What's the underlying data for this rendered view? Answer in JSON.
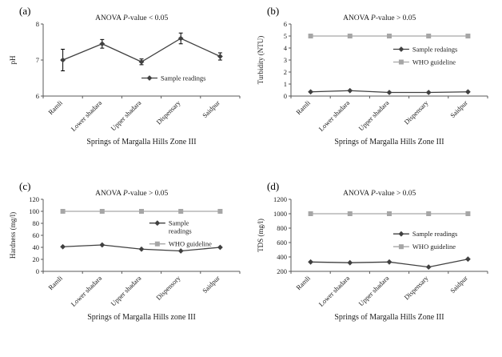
{
  "page": {
    "background": "#ffffff"
  },
  "colors": {
    "sample": "#404040",
    "who": "#a6a6a6",
    "axis": "#595959",
    "text": "#1a1a1a",
    "error": "#000000"
  },
  "chart_data": [
    {
      "panel_label": "(a)",
      "type": "line",
      "annotation": "ANOVA P-value < 0.05",
      "ylabel": "pH",
      "xlabel": "Springs of Margalla Hills Zone III",
      "ylim": [
        6,
        8
      ],
      "yticks": [
        6,
        7,
        8
      ],
      "categories": [
        "Ramli",
        "Lower shadara",
        "Upper shadara",
        "Dispensary",
        "Saidpur"
      ],
      "series": [
        {
          "name": "Sample readings",
          "marker": "diamond",
          "color": "#404040",
          "values": [
            7.0,
            7.45,
            6.95,
            7.6,
            7.1
          ],
          "errors": [
            0.3,
            0.12,
            0.08,
            0.15,
            0.1
          ]
        }
      ],
      "legend": {
        "x": 0.5,
        "y": 0.75
      },
      "legend_position": "inside-right",
      "grid": false
    },
    {
      "panel_label": "(b)",
      "type": "line",
      "annotation": "ANOVA P-value > 0.05",
      "ylabel": "Turbidity (NTU)",
      "xlabel": "Springs of Margalla Hills Zone III",
      "ylim": [
        0,
        6
      ],
      "yticks": [
        0,
        1,
        2,
        3,
        4,
        5,
        6
      ],
      "categories": [
        "Ramli",
        "Lower shadara",
        "Upper shadara",
        "Dispensary",
        "Saidpur"
      ],
      "series": [
        {
          "name": "Sample redaings",
          "marker": "diamond",
          "color": "#404040",
          "values": [
            0.35,
            0.45,
            0.3,
            0.3,
            0.35
          ]
        },
        {
          "name": "WHO guideline",
          "marker": "square",
          "color": "#a6a6a6",
          "values": [
            5,
            5,
            5,
            5,
            5
          ]
        }
      ],
      "legend": {
        "x": 0.52,
        "y": 0.35
      },
      "legend_position": "inside-right",
      "grid": false
    },
    {
      "panel_label": "(c)",
      "type": "line",
      "annotation": "ANOVA P-value > 0.05",
      "ylabel": "Hardness (mg/l)",
      "xlabel": "Springs of Margalla Hills zone III",
      "ylim": [
        0,
        120
      ],
      "yticks": [
        0,
        20,
        40,
        60,
        80,
        100,
        120
      ],
      "categories": [
        "Ramli",
        "Lower shadara",
        "Upper shadara",
        "Dispensory",
        "Saidpur"
      ],
      "series": [
        {
          "name": "Sample readings",
          "legend_lines": [
            "Sample",
            "readings"
          ],
          "marker": "diamond",
          "color": "#404040",
          "values": [
            41,
            44,
            37,
            34,
            40
          ]
        },
        {
          "name": "WHO guideline",
          "marker": "square",
          "color": "#a6a6a6",
          "values": [
            100,
            100,
            100,
            100,
            100
          ]
        }
      ],
      "legend": {
        "x": 0.54,
        "y": 0.33
      },
      "legend_position": "inside-right",
      "grid": false
    },
    {
      "panel_label": "(d)",
      "type": "line",
      "annotation": "ANOVA P-value > 0.05",
      "ylabel": "TDS (mg/l)",
      "xlabel": "Springs of Margalla Hills Zone III",
      "ylim": [
        200,
        1200
      ],
      "yticks": [
        200,
        400,
        600,
        800,
        1000,
        1200
      ],
      "categories": [
        "Ramli",
        "Lower shadara",
        "Upper shadara",
        "Dispensary",
        "Saidpur"
      ],
      "series": [
        {
          "name": "Sample readings",
          "marker": "diamond",
          "color": "#404040",
          "values": [
            330,
            320,
            330,
            260,
            370
          ]
        },
        {
          "name": "WHO guideline",
          "marker": "square",
          "color": "#a6a6a6",
          "values": [
            1000,
            1000,
            1000,
            1000,
            1000
          ]
        }
      ],
      "legend": {
        "x": 0.52,
        "y": 0.48
      },
      "legend_position": "inside-right",
      "grid": false
    }
  ]
}
